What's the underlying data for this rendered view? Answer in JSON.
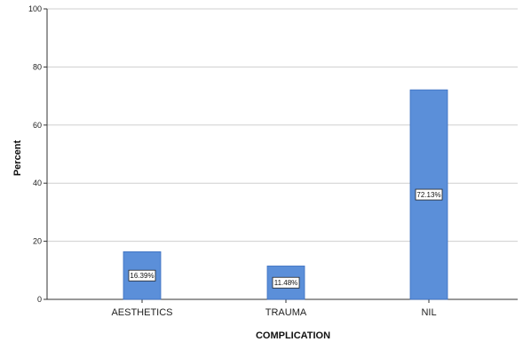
{
  "chart_data": {
    "type": "bar",
    "title": "",
    "xlabel": "COMPLICATION",
    "ylabel": "Percent",
    "categories": [
      "AESTHETICS",
      "TRAUMA",
      "NIL"
    ],
    "values": [
      16.39,
      11.48,
      72.13
    ],
    "data_labels": [
      "16.39%",
      "11.48%",
      "72.13%"
    ],
    "ylim": [
      0,
      100
    ],
    "yticks": [
      0,
      20,
      40,
      60,
      80,
      100
    ],
    "grid": "horizontal",
    "bar_color": "#5b8fd9",
    "bar_edge_color": "#3a6fc0",
    "grid_color": "#cfcfcf"
  }
}
